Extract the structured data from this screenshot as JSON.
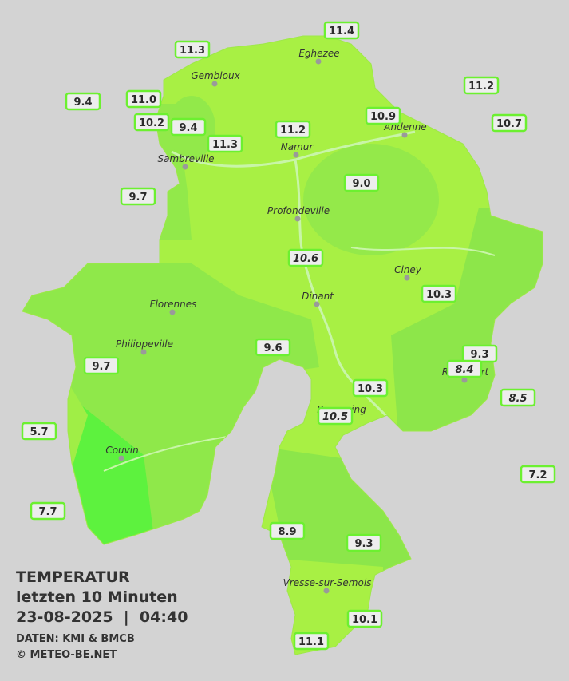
{
  "title": {
    "lines": [
      "TEMPERATUR",
      "letzten 10 Minuten",
      "23-08-2025  |  04:40"
    ],
    "sources": [
      "DATEN: KMI & BMCB",
      "© METEO-BE.NET"
    ]
  },
  "cities": [
    {
      "name": "Eghezee"
    },
    {
      "name": "Gembloux"
    },
    {
      "name": "Andenne"
    },
    {
      "name": "Namur"
    },
    {
      "name": "Sambreville"
    },
    {
      "name": "Profondeville"
    },
    {
      "name": "Ciney"
    },
    {
      "name": "Florennes"
    },
    {
      "name": "Dinant"
    },
    {
      "name": "Philippeville"
    },
    {
      "name": "Beauraing"
    },
    {
      "name": "Rochefort"
    },
    {
      "name": "Couvin"
    },
    {
      "name": "Vresse-sur-Semois"
    }
  ],
  "stations": [
    {
      "value": "11.4"
    },
    {
      "value": "11.3"
    },
    {
      "value": "11.2"
    },
    {
      "value": "9.4"
    },
    {
      "value": "11.0"
    },
    {
      "value": "10.9"
    },
    {
      "value": "10.7"
    },
    {
      "value": "10.2"
    },
    {
      "value": "9.4"
    },
    {
      "value": "11.2"
    },
    {
      "value": "11.3"
    },
    {
      "value": "9.0"
    },
    {
      "value": "9.7"
    },
    {
      "value": "10.6",
      "italic": true
    },
    {
      "value": "10.3"
    },
    {
      "value": "9.6"
    },
    {
      "value": "9.3"
    },
    {
      "value": "8.4",
      "italic": true
    },
    {
      "value": "9.7"
    },
    {
      "value": "8.5",
      "italic": true
    },
    {
      "value": "10.3"
    },
    {
      "value": "10.5",
      "italic": true
    },
    {
      "value": "5.7"
    },
    {
      "value": "7.2"
    },
    {
      "value": "7.7"
    },
    {
      "value": "8.9"
    },
    {
      "value": "9.3"
    },
    {
      "value": "10.1"
    },
    {
      "value": "11.1"
    }
  ]
}
